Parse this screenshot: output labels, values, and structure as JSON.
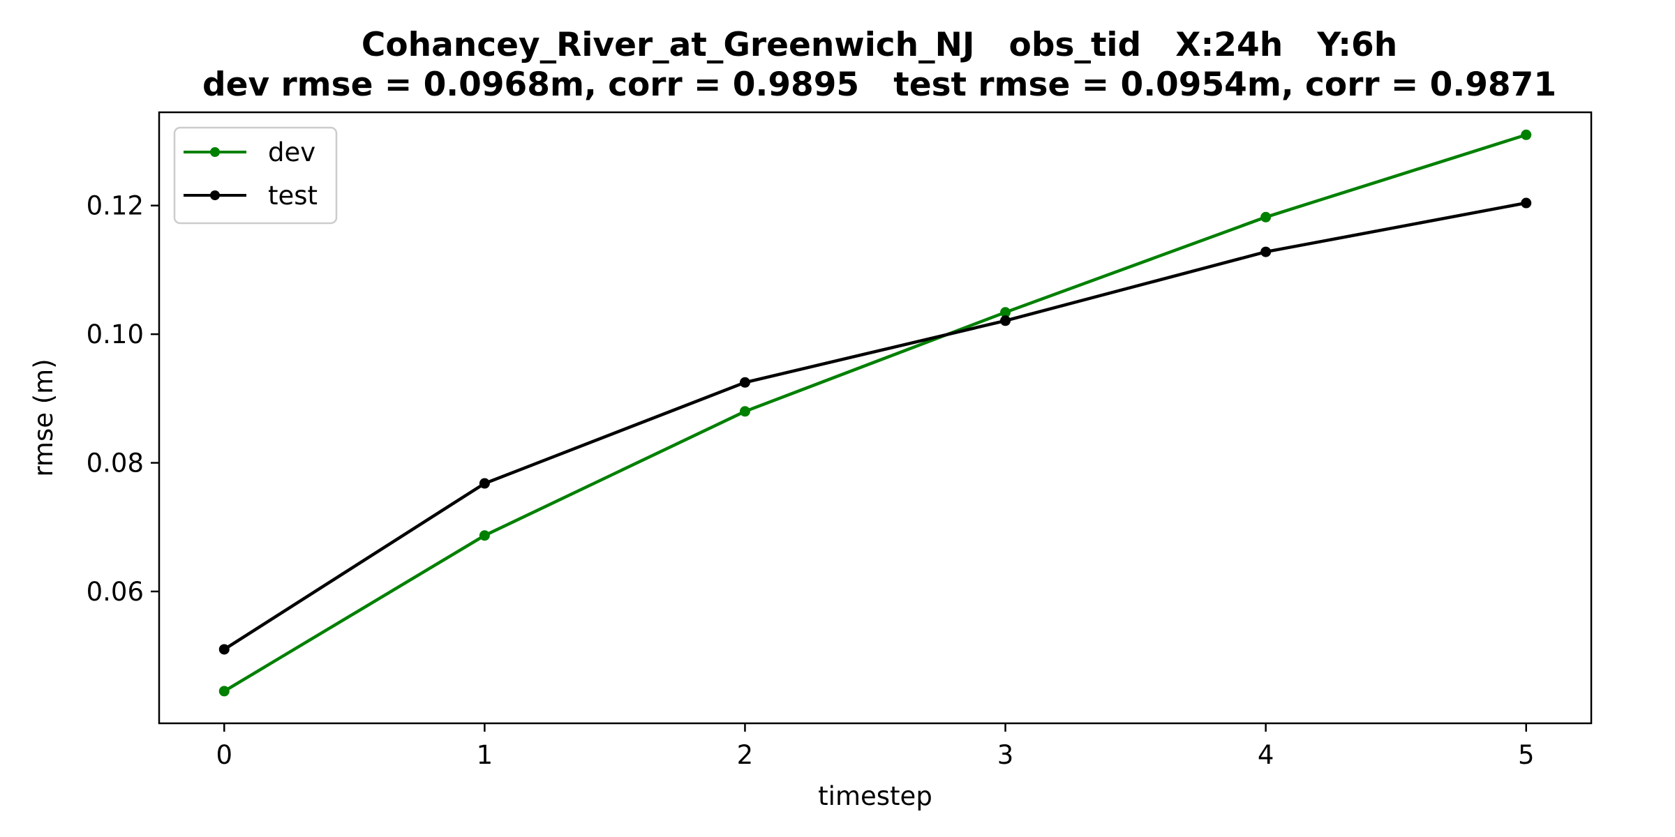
{
  "chart_data": {
    "type": "line",
    "title": "Cohancey_River_at_Greenwich_NJ   obs_tid   X:24h   Y:6h",
    "subtitle": "dev rmse = 0.0968m, corr = 0.9895   test rmse = 0.0954m, corr = 0.9871",
    "xlabel": "timestep",
    "ylabel": "rmse (m)",
    "x": [
      0,
      1,
      2,
      3,
      4,
      5
    ],
    "xticks": [
      "0",
      "1",
      "2",
      "3",
      "4",
      "5"
    ],
    "yticks": [
      "0.06",
      "0.08",
      "0.10",
      "0.12"
    ],
    "xlim": [
      -0.25,
      5.25
    ],
    "ylim": [
      0.0395,
      0.1345
    ],
    "grid": false,
    "legend_position": "upper-left",
    "series": [
      {
        "name": "dev",
        "color": "#008000",
        "values": [
          0.0445,
          0.0687,
          0.088,
          0.1034,
          0.1182,
          0.131
        ]
      },
      {
        "name": "test",
        "color": "#000000",
        "values": [
          0.051,
          0.0768,
          0.0925,
          0.1021,
          0.1128,
          0.1204
        ]
      }
    ]
  }
}
